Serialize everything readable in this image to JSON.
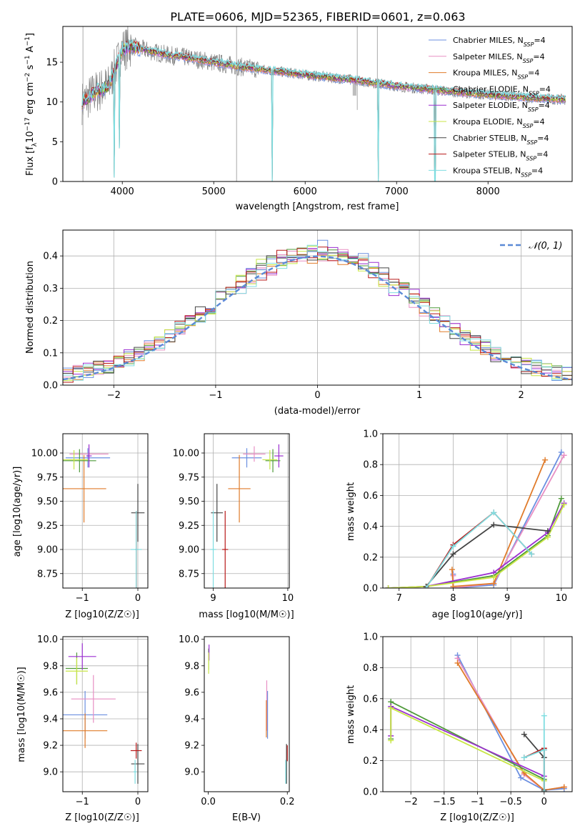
{
  "title": "PLATE=0606, MJD=52365, FIBERID=0601, z=0.063",
  "colors": {
    "chabrier_miles": "#6b8fe0",
    "salpeter_miles": "#e88fc4",
    "kroupa_miles": "#e07b2a",
    "chabrier_elodie": "#4f9a3a",
    "salpeter_elodie": "#9b2fd0",
    "kroupa_elodie": "#c8e645",
    "chabrier_stelib": "#444444",
    "salpeter_stelib": "#b81818",
    "kroupa_stelib": "#7fdde0",
    "observed": "#808080",
    "normal": "#5b8ad6",
    "grid": "#b0b0b0"
  },
  "chart_data": [
    {
      "id": "spectrum",
      "type": "line",
      "xlabel": "wavelength [Angstrom, rest frame]",
      "ylabel_parts": [
        "Flux [f",
        "λ",
        "10",
        "−17",
        " erg cm",
        "−2",
        " s",
        "−1",
        " A",
        "−1",
        "]"
      ],
      "xlim": [
        3350,
        8920
      ],
      "ylim": [
        0,
        19.5
      ],
      "xticks": [
        4000,
        5000,
        6000,
        7000,
        8000
      ],
      "yticks": [
        0,
        5,
        10,
        15
      ],
      "grid": false,
      "legend_placement": "top-right",
      "legend": [
        {
          "label": "Chabrier MILES, N",
          "sub": "SSP",
          "suffix": "=4",
          "color_key": "chabrier_miles"
        },
        {
          "label": "Salpeter MILES, N",
          "sub": "SSP",
          "suffix": "=4",
          "color_key": "salpeter_miles"
        },
        {
          "label": "Kroupa MILES, N",
          "sub": "SSP",
          "suffix": "=4",
          "color_key": "kroupa_miles"
        },
        {
          "label": "Chabrier ELODIE, N",
          "sub": "SSP",
          "suffix": "=4",
          "color_key": "chabrier_elodie"
        },
        {
          "label": "Salpeter ELODIE, N",
          "sub": "SSP",
          "suffix": "=4",
          "color_key": "salpeter_elodie"
        },
        {
          "label": "Kroupa ELODIE, N",
          "sub": "SSP",
          "suffix": "=4",
          "color_key": "kroupa_elodie"
        },
        {
          "label": "Chabrier STELIB, N",
          "sub": "SSP",
          "suffix": "=4",
          "color_key": "chabrier_stelib"
        },
        {
          "label": "Salpeter STELIB, N",
          "sub": "SSP",
          "suffix": "=4",
          "color_key": "salpeter_stelib"
        },
        {
          "label": "Kroupa STELIB, N",
          "sub": "SSP",
          "suffix": "=4",
          "color_key": "kroupa_stelib"
        }
      ],
      "continuum": [
        [
          3550,
          9.8
        ],
        [
          3700,
          11.2
        ],
        [
          3850,
          12.0
        ],
        [
          3950,
          15.0
        ],
        [
          4000,
          16.6
        ],
        [
          4100,
          17.0
        ],
        [
          4300,
          16.4
        ],
        [
          4500,
          15.9
        ],
        [
          4700,
          15.6
        ],
        [
          5000,
          15.0
        ],
        [
          5300,
          14.4
        ],
        [
          5600,
          14.0
        ],
        [
          6000,
          13.4
        ],
        [
          6500,
          12.8
        ],
        [
          7000,
          12.0
        ],
        [
          7500,
          11.4
        ],
        [
          8000,
          10.9
        ],
        [
          8500,
          10.5
        ],
        [
          8800,
          10.3
        ]
      ],
      "observed_spikes": [
        [
          3570,
          19.5
        ],
        [
          3570,
          0
        ],
        [
          5250,
          19.5
        ],
        [
          5250,
          0
        ],
        [
          6570,
          19.5
        ],
        [
          7420,
          0
        ],
        [
          6800,
          0
        ]
      ],
      "model_dips": [
        [
          3910,
          0.5
        ],
        [
          3970,
          4.2
        ],
        [
          5640,
          0
        ],
        [
          6800,
          0
        ],
        [
          7420,
          0
        ]
      ]
    },
    {
      "id": "residuals",
      "type": "line",
      "xlabel": "(data-model)/error",
      "ylabel": "Normed distribution",
      "xlim": [
        -2.5,
        2.5
      ],
      "ylim": [
        0,
        0.48
      ],
      "xticks": [
        -2,
        -1,
        0,
        1,
        2
      ],
      "yticks": [
        0.0,
        0.1,
        0.2,
        0.3,
        0.4
      ],
      "grid": true,
      "legend_placement": "top-right",
      "legend": [
        {
          "label": "𝒩(0, 1)",
          "color_key": "normal"
        }
      ],
      "bin_width": 0.1,
      "normal": {
        "mu": 0,
        "sigma": 1
      }
    },
    {
      "id": "age-vs-Z",
      "type": "scatter",
      "xlabel": "Z [log10(Z/Z☉)]",
      "ylabel": "age  [log10(age/yr)]",
      "xlim": [
        -1.35,
        0.18
      ],
      "ylim": [
        8.6,
        10.2
      ],
      "xticks": [
        -1,
        0
      ],
      "yticks": [
        8.75,
        9.0,
        9.25,
        9.5,
        9.75,
        10.0
      ],
      "grid": true,
      "points": [
        {
          "color_key": "chabrier_miles",
          "x": -0.9,
          "xerr": 0.4,
          "y": 9.95,
          "yerr": 0.1
        },
        {
          "color_key": "salpeter_miles",
          "x": -0.88,
          "xerr": 0.35,
          "y": 9.99,
          "yerr": 0.08
        },
        {
          "color_key": "kroupa_miles",
          "x": -0.97,
          "xerr": 0.4,
          "y": 9.63,
          "yerr": 0.35
        },
        {
          "color_key": "chabrier_elodie",
          "x": -1.05,
          "xerr": 0.3,
          "y": 9.92,
          "yerr": 0.12
        },
        {
          "color_key": "salpeter_elodie",
          "x": -0.88,
          "xerr": 0.05,
          "y": 9.97,
          "yerr": 0.12
        },
        {
          "color_key": "kroupa_elodie",
          "x": -1.15,
          "xerr": 0.25,
          "y": 9.93,
          "yerr": 0.1
        },
        {
          "color_key": "chabrier_stelib",
          "x": 0.0,
          "xerr": 0.12,
          "y": 9.38,
          "yerr": 0.3
        },
        {
          "color_key": "salpeter_stelib",
          "x": -0.03,
          "xerr": 0.02,
          "y": 9.0,
          "yerr": 0.4
        },
        {
          "color_key": "kroupa_stelib",
          "x": -0.03,
          "xerr": 0.1,
          "y": 9.0,
          "yerr": 0.4
        }
      ]
    },
    {
      "id": "age-vs-mass",
      "type": "scatter",
      "xlabel": "mass [log10(M/M☉)]",
      "ylabel": "",
      "xlim": [
        8.88,
        10.02
      ],
      "ylim": [
        8.6,
        10.2
      ],
      "xticks": [
        9,
        10
      ],
      "yticks": [
        8.75,
        9.0,
        9.25,
        9.5,
        9.75,
        10.0
      ],
      "grid": true,
      "points": [
        {
          "color_key": "chabrier_miles",
          "x": 9.45,
          "xerr": 0.2,
          "y": 9.95,
          "yerr": 0.1
        },
        {
          "color_key": "salpeter_miles",
          "x": 9.55,
          "xerr": 0.15,
          "y": 9.99,
          "yerr": 0.08
        },
        {
          "color_key": "kroupa_miles",
          "x": 9.35,
          "xerr": 0.15,
          "y": 9.63,
          "yerr": 0.35
        },
        {
          "color_key": "chabrier_elodie",
          "x": 9.8,
          "xerr": 0.1,
          "y": 9.92,
          "yerr": 0.12
        },
        {
          "color_key": "salpeter_elodie",
          "x": 9.88,
          "xerr": 0.06,
          "y": 9.97,
          "yerr": 0.12
        },
        {
          "color_key": "kroupa_elodie",
          "x": 9.76,
          "xerr": 0.1,
          "y": 9.93,
          "yerr": 0.1
        },
        {
          "color_key": "chabrier_stelib",
          "x": 9.05,
          "xerr": 0.08,
          "y": 9.38,
          "yerr": 0.3
        },
        {
          "color_key": "salpeter_stelib",
          "x": 9.16,
          "xerr": 0.04,
          "y": 9.0,
          "yerr": 0.4
        },
        {
          "color_key": "kroupa_stelib",
          "x": 9.0,
          "xerr": 0.04,
          "y": 9.0,
          "yerr": 0.4
        }
      ]
    },
    {
      "id": "mass-weight-vs-age",
      "type": "line",
      "xlabel": "age  [log10(age/yr)]",
      "ylabel": "mass weight",
      "xlim": [
        6.7,
        10.2
      ],
      "ylim": [
        0,
        1.0
      ],
      "xticks": [
        7,
        8,
        9,
        10
      ],
      "yticks": [
        0.0,
        0.2,
        0.4,
        0.6,
        0.8,
        1.0
      ],
      "grid": true,
      "series": [
        {
          "color_key": "chabrier_miles",
          "x": [
            8.0,
            8.0,
            8.75,
            10.0
          ],
          "y": [
            0.09,
            0.0,
            0.02,
            0.88
          ]
        },
        {
          "color_key": "salpeter_miles",
          "x": [
            8.0,
            8.0,
            8.75,
            10.05
          ],
          "y": [
            0.08,
            0.0,
            0.03,
            0.86
          ]
        },
        {
          "color_key": "kroupa_miles",
          "x": [
            7.98,
            8.0,
            8.75,
            9.7
          ],
          "y": [
            0.12,
            0.01,
            0.03,
            0.83
          ]
        },
        {
          "color_key": "chabrier_elodie",
          "x": [
            6.8,
            7.5,
            8.75,
            9.75,
            10.0
          ],
          "y": [
            0.0,
            0.01,
            0.08,
            0.34,
            0.58
          ]
        },
        {
          "color_key": "salpeter_elodie",
          "x": [
            6.8,
            7.5,
            8.75,
            9.75,
            10.05
          ],
          "y": [
            0.0,
            0.01,
            0.1,
            0.36,
            0.55
          ]
        },
        {
          "color_key": "kroupa_elodie",
          "x": [
            6.8,
            7.5,
            8.75,
            9.75,
            10.05
          ],
          "y": [
            0.0,
            0.01,
            0.07,
            0.33,
            0.54
          ]
        },
        {
          "color_key": "chabrier_stelib",
          "x": [
            7.5,
            8.0,
            8.75,
            9.75
          ],
          "y": [
            0.01,
            0.22,
            0.41,
            0.37
          ]
        },
        {
          "color_key": "salpeter_stelib",
          "x": [
            7.5,
            8.0,
            8.75,
            9.45
          ],
          "y": [
            0.0,
            0.28,
            0.49,
            0.22
          ]
        },
        {
          "color_key": "kroupa_stelib",
          "x": [
            7.5,
            8.0,
            8.75,
            9.45
          ],
          "y": [
            0.0,
            0.27,
            0.49,
            0.22
          ]
        }
      ]
    },
    {
      "id": "mass-vs-Z",
      "type": "scatter",
      "xlabel": "Z [log10(Z/Z☉)]",
      "ylabel": "mass [log10(M/M☉)]",
      "xlim": [
        -1.35,
        0.18
      ],
      "ylim": [
        8.85,
        10.02
      ],
      "xticks": [
        -1,
        0
      ],
      "yticks": [
        9.0,
        9.2,
        9.4,
        9.6,
        9.8,
        10.0
      ],
      "grid": true,
      "points": [
        {
          "color_key": "chabrier_miles",
          "x": -0.95,
          "xerr": 0.4,
          "y": 9.43,
          "yerr": 0.18
        },
        {
          "color_key": "salpeter_miles",
          "x": -0.8,
          "xerr": 0.4,
          "y": 9.55,
          "yerr": 0.18
        },
        {
          "color_key": "kroupa_miles",
          "x": -0.95,
          "xerr": 0.4,
          "y": 9.31,
          "yerr": 0.13
        },
        {
          "color_key": "chabrier_elodie",
          "x": -1.1,
          "xerr": 0.2,
          "y": 9.78,
          "yerr": 0.12
        },
        {
          "color_key": "salpeter_elodie",
          "x": -1.0,
          "xerr": 0.25,
          "y": 9.87,
          "yerr": 0.1
        },
        {
          "color_key": "kroupa_elodie",
          "x": -1.1,
          "xerr": 0.2,
          "y": 9.76,
          "yerr": 0.1
        },
        {
          "color_key": "chabrier_stelib",
          "x": 0.0,
          "xerr": 0.12,
          "y": 9.06,
          "yerr": 0.15
        },
        {
          "color_key": "salpeter_stelib",
          "x": -0.03,
          "xerr": 0.1,
          "y": 9.16,
          "yerr": 0.06
        },
        {
          "color_key": "kroupa_stelib",
          "x": -0.05,
          "xerr": 0.03,
          "y": 9.0,
          "yerr": 0.09
        }
      ]
    },
    {
      "id": "mass-vs-EBV",
      "type": "scatter",
      "xlabel": "E(B-V)",
      "ylabel": "",
      "xlim": [
        -0.01,
        0.205
      ],
      "ylim": [
        8.85,
        10.02
      ],
      "xticks": [
        0.0,
        0.2
      ],
      "yticks": [
        9.0,
        9.2,
        9.4,
        9.6,
        9.8,
        10.0
      ],
      "grid": false,
      "points": [
        {
          "color_key": "chabrier_miles",
          "x": 0.15,
          "xerr": 0.0,
          "y": 9.43,
          "yerr": 0.18
        },
        {
          "color_key": "salpeter_miles",
          "x": 0.148,
          "xerr": 0.0,
          "y": 9.5,
          "yerr": 0.19
        },
        {
          "color_key": "kroupa_miles",
          "x": 0.147,
          "xerr": 0.0,
          "y": 9.4,
          "yerr": 0.14
        },
        {
          "color_key": "chabrier_elodie",
          "x": 0.001,
          "xerr": 0.0,
          "y": 9.85,
          "yerr": 0.08
        },
        {
          "color_key": "salpeter_elodie",
          "x": 0.002,
          "xerr": 0.0,
          "y": 9.9,
          "yerr": 0.06
        },
        {
          "color_key": "kroupa_elodie",
          "x": 0.001,
          "xerr": 0.0,
          "y": 9.82,
          "yerr": 0.08
        },
        {
          "color_key": "chabrier_stelib",
          "x": 0.198,
          "xerr": 0.0,
          "y": 9.06,
          "yerr": 0.15
        },
        {
          "color_key": "salpeter_stelib",
          "x": 0.2,
          "xerr": 0.0,
          "y": 9.14,
          "yerr": 0.06
        },
        {
          "color_key": "kroupa_stelib",
          "x": 0.196,
          "xerr": 0.0,
          "y": 9.0,
          "yerr": 0.09
        }
      ]
    },
    {
      "id": "mass-weight-vs-Z",
      "type": "line",
      "xlabel": "Z [log10(Z/Z☉)]",
      "ylabel": "mass weight",
      "xlim": [
        -2.42,
        0.42
      ],
      "ylim": [
        0,
        1.0
      ],
      "xticks": [
        -2.0,
        -1.5,
        -1.0,
        -0.5,
        0.0
      ],
      "yticks": [
        0.0,
        0.2,
        0.4,
        0.6,
        0.8,
        1.0
      ],
      "grid": true,
      "series": [
        {
          "color_key": "chabrier_miles",
          "x": [
            -1.3,
            -0.35,
            0.0,
            0.3
          ],
          "y": [
            0.88,
            0.09,
            0.01,
            0.02
          ]
        },
        {
          "color_key": "salpeter_miles",
          "x": [
            -1.3,
            -0.3,
            0.0,
            0.3
          ],
          "y": [
            0.86,
            0.11,
            0.01,
            0.03
          ]
        },
        {
          "color_key": "kroupa_miles",
          "x": [
            -1.3,
            -0.3,
            0.0,
            0.3
          ],
          "y": [
            0.83,
            0.12,
            0.01,
            0.03
          ]
        },
        {
          "color_key": "chabrier_elodie",
          "x": [
            -2.3,
            -2.3,
            0.0,
            0.0
          ],
          "y": [
            0.34,
            0.58,
            0.08,
            0.0
          ]
        },
        {
          "color_key": "salpeter_elodie",
          "x": [
            -2.3,
            -2.3,
            0.0,
            0.0
          ],
          "y": [
            0.36,
            0.55,
            0.1,
            0.0
          ]
        },
        {
          "color_key": "kroupa_elodie",
          "x": [
            -2.3,
            -2.3,
            0.0,
            0.0
          ],
          "y": [
            0.33,
            0.54,
            0.07,
            0.0
          ]
        },
        {
          "color_key": "chabrier_stelib",
          "x": [
            -0.3,
            0.0,
            0.0,
            0.0
          ],
          "y": [
            0.37,
            0.22,
            0.27,
            0.01
          ]
        },
        {
          "color_key": "salpeter_stelib",
          "x": [
            -0.3,
            0.0,
            0.0
          ],
          "y": [
            0.22,
            0.28,
            0.0
          ]
        },
        {
          "color_key": "kroupa_stelib",
          "x": [
            -0.3,
            0.0,
            0.0,
            0.0
          ],
          "y": [
            0.22,
            0.27,
            0.49,
            0.0
          ]
        }
      ]
    }
  ]
}
